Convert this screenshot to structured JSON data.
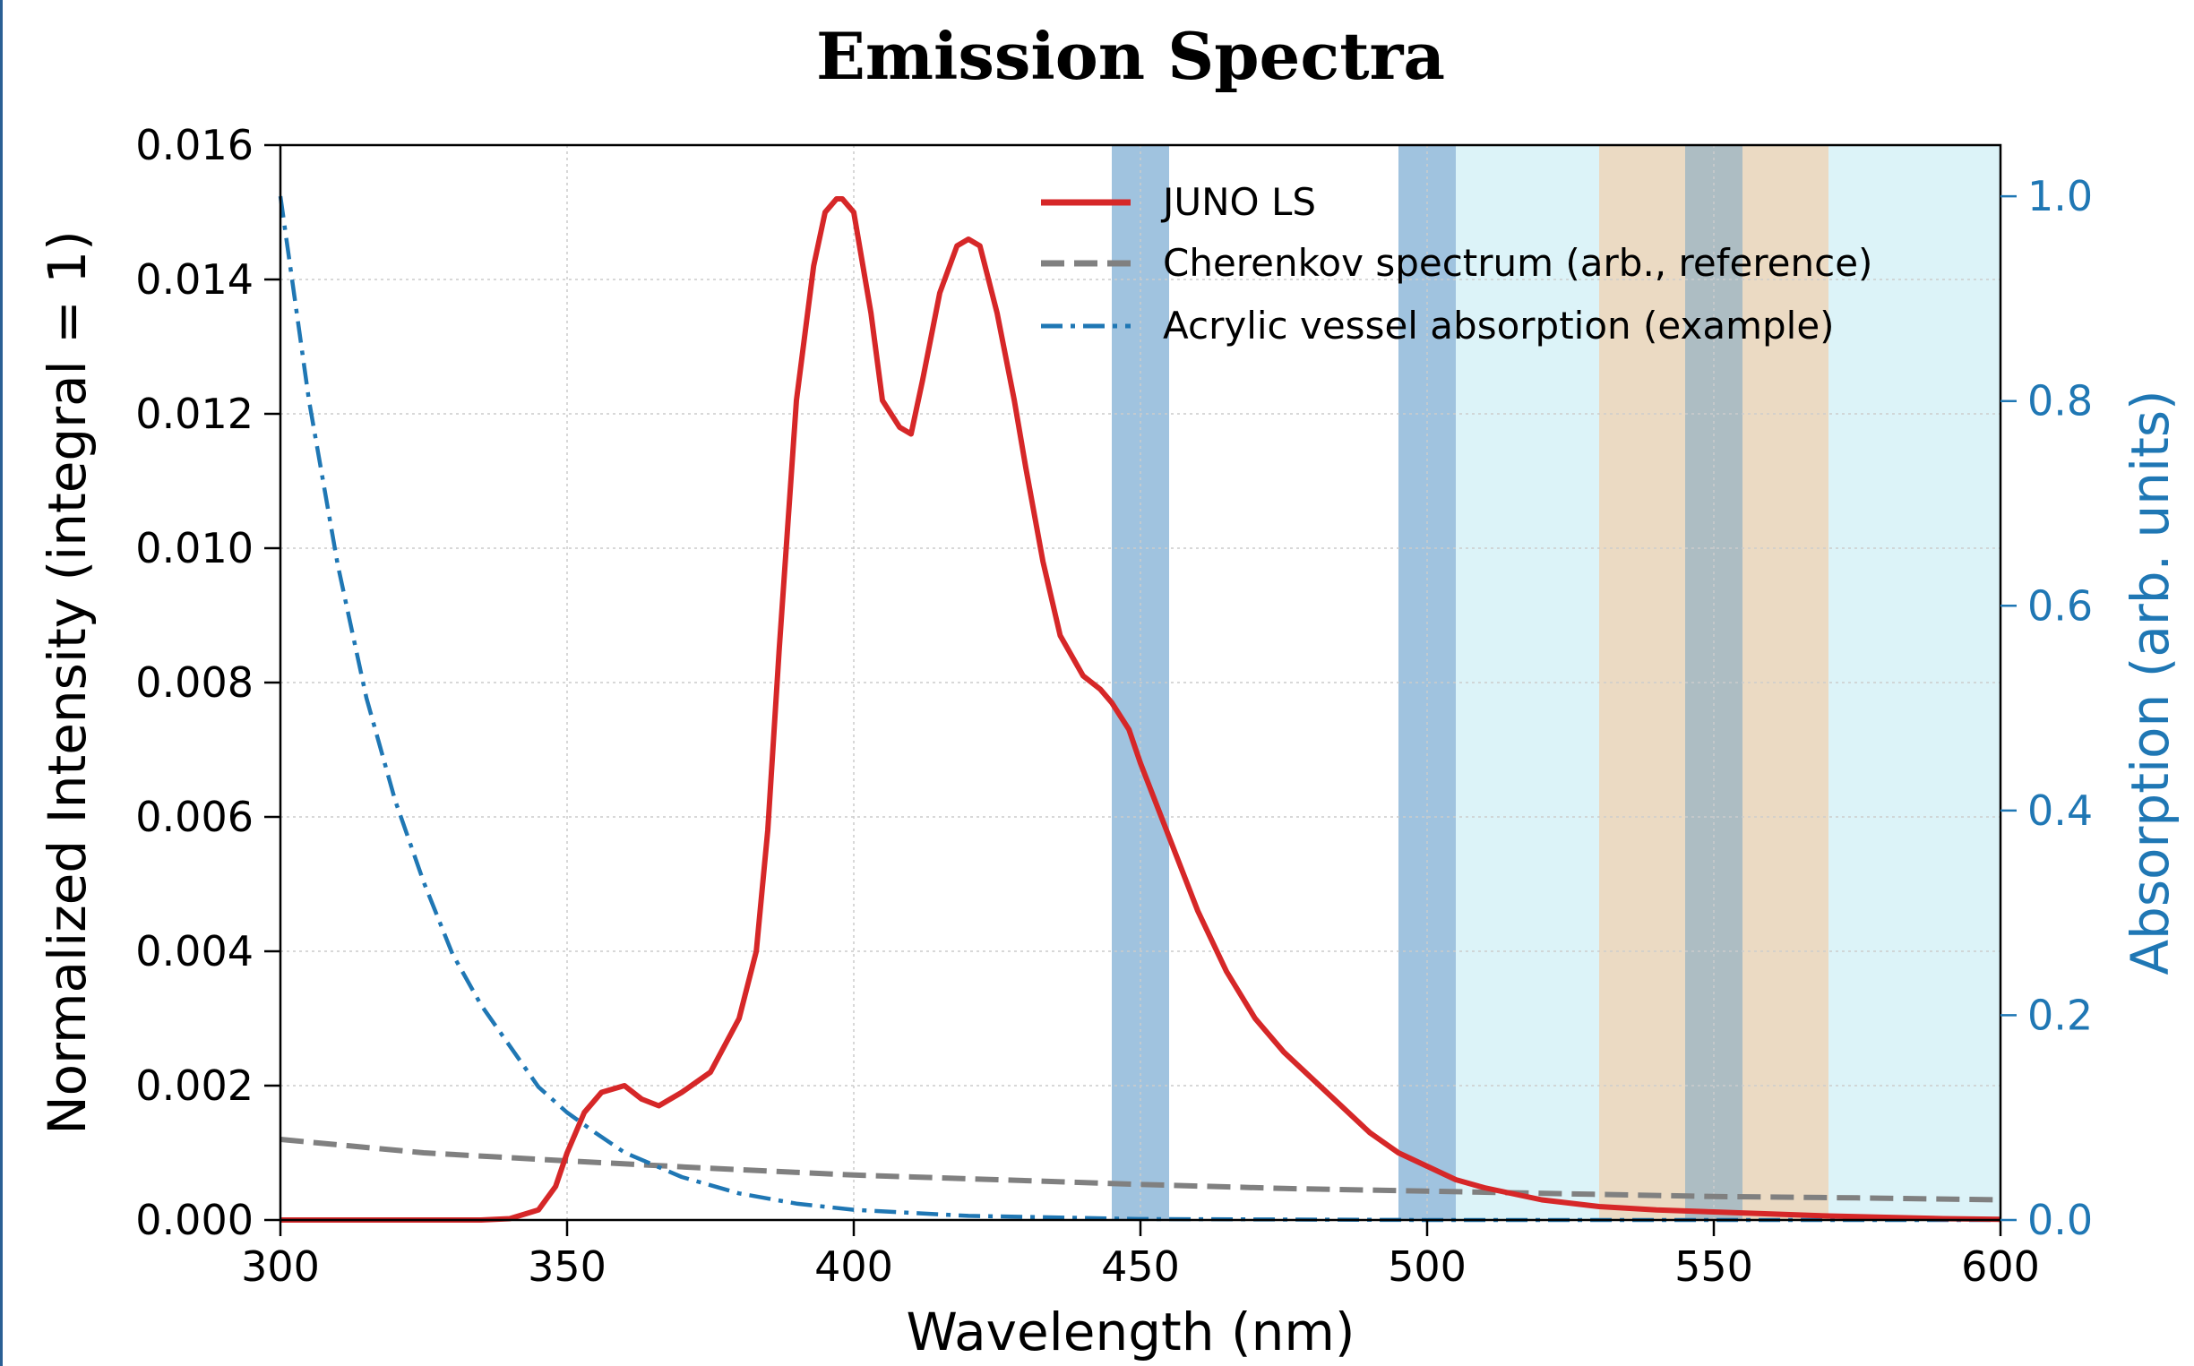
{
  "chart_data": {
    "type": "line",
    "title": "Emission Spectra",
    "xlabel": "Wavelength (nm)",
    "ylabel": "Normalized Intensity (integral = 1)",
    "ylabel_right": "Absorption (arb. units)",
    "xlim": [
      300,
      600
    ],
    "ylim": [
      0,
      0.016
    ],
    "ylim_right": [
      0,
      1.05
    ],
    "x_ticks": [
      "300",
      "350",
      "400",
      "450",
      "500",
      "550",
      "600"
    ],
    "y_ticks": [
      "0.000",
      "0.002",
      "0.004",
      "0.006",
      "0.008",
      "0.010",
      "0.012",
      "0.014",
      "0.016"
    ],
    "y_right_ticks": [
      "0.0",
      "0.2",
      "0.4",
      "0.6",
      "0.8",
      "1.0"
    ],
    "grid": true,
    "legend_position": "top-right",
    "colors": {
      "juno": "#d62728",
      "cherenkov": "#808080",
      "acrylic": "#1f77b4",
      "right_axis": "#1f77b4",
      "band_blue": "#8fb9d9",
      "band_cyan": "#d6f1f7",
      "band_tan": "#e8d4b8",
      "band_slate": "#9fb2b8"
    },
    "shaded_bands": [
      {
        "x0": 445,
        "x1": 455,
        "color": "band_blue"
      },
      {
        "x0": 495,
        "x1": 505,
        "color": "band_blue"
      },
      {
        "x0": 505,
        "x1": 530,
        "color": "band_cyan"
      },
      {
        "x0": 530,
        "x1": 545,
        "color": "band_tan"
      },
      {
        "x0": 545,
        "x1": 555,
        "color": "band_slate"
      },
      {
        "x0": 555,
        "x1": 570,
        "color": "band_tan"
      },
      {
        "x0": 570,
        "x1": 600,
        "color": "band_cyan"
      }
    ],
    "series": [
      {
        "name": "JUNO LS",
        "axis": "left",
        "style": "solid",
        "x": [
          300,
          320,
          335,
          340,
          345,
          348,
          350,
          353,
          356,
          360,
          363,
          366,
          370,
          375,
          380,
          383,
          385,
          387,
          390,
          393,
          395,
          397,
          398,
          400,
          403,
          405,
          408,
          410,
          412,
          415,
          418,
          420,
          422,
          425,
          428,
          430,
          433,
          436,
          440,
          443,
          445,
          448,
          450,
          455,
          460,
          465,
          470,
          475,
          480,
          485,
          490,
          495,
          500,
          505,
          510,
          520,
          530,
          540,
          550,
          560,
          570,
          580,
          590,
          600
        ],
        "y": [
          0.0,
          0.0,
          0.0,
          2e-05,
          0.00015,
          0.0005,
          0.001,
          0.0016,
          0.0019,
          0.002,
          0.0018,
          0.0017,
          0.0019,
          0.0022,
          0.003,
          0.004,
          0.0058,
          0.0085,
          0.0122,
          0.0142,
          0.015,
          0.0152,
          0.0152,
          0.015,
          0.0135,
          0.0122,
          0.0118,
          0.0117,
          0.0125,
          0.0138,
          0.0145,
          0.0146,
          0.0145,
          0.0135,
          0.0122,
          0.0112,
          0.0098,
          0.0087,
          0.0081,
          0.0079,
          0.0077,
          0.0073,
          0.0068,
          0.0057,
          0.0046,
          0.0037,
          0.003,
          0.0025,
          0.0021,
          0.0017,
          0.0013,
          0.001,
          0.0008,
          0.0006,
          0.00048,
          0.0003,
          0.0002,
          0.00015,
          0.00012,
          9e-05,
          6e-05,
          4e-05,
          2e-05,
          1e-05
        ]
      },
      {
        "name": "Cherenkov spectrum (arb., reference)",
        "axis": "left",
        "style": "dashed",
        "x": [
          300,
          325,
          350,
          375,
          400,
          425,
          450,
          475,
          500,
          525,
          550,
          575,
          600
        ],
        "y": [
          0.0012,
          0.001,
          0.00088,
          0.00077,
          0.00067,
          0.0006,
          0.00053,
          0.00047,
          0.00043,
          0.00039,
          0.00035,
          0.00033,
          0.0003
        ]
      },
      {
        "name": "Acrylic vessel absorption (example)",
        "axis": "right",
        "style": "dashdot",
        "x": [
          300,
          305,
          310,
          315,
          320,
          325,
          330,
          335,
          340,
          345,
          350,
          355,
          360,
          370,
          380,
          390,
          400,
          420,
          450,
          500,
          550,
          600
        ],
        "y": [
          1.0,
          0.8,
          0.64,
          0.51,
          0.41,
          0.33,
          0.26,
          0.21,
          0.17,
          0.13,
          0.105,
          0.085,
          0.066,
          0.042,
          0.026,
          0.016,
          0.01,
          0.004,
          0.001,
          0.0,
          0.0,
          0.0
        ]
      }
    ]
  }
}
